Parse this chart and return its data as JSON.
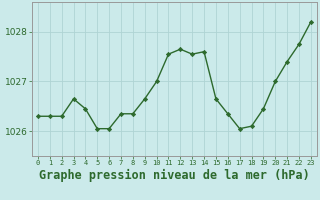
{
  "x": [
    0,
    1,
    2,
    3,
    4,
    5,
    6,
    7,
    8,
    9,
    10,
    11,
    12,
    13,
    14,
    15,
    16,
    17,
    18,
    19,
    20,
    21,
    22,
    23
  ],
  "y": [
    1026.3,
    1026.3,
    1026.3,
    1026.65,
    1026.45,
    1026.05,
    1026.05,
    1026.35,
    1026.35,
    1026.65,
    1027.0,
    1027.55,
    1027.65,
    1027.55,
    1027.6,
    1026.65,
    1026.35,
    1026.05,
    1026.1,
    1026.45,
    1027.0,
    1027.4,
    1027.75,
    1028.2
  ],
  "line_color": "#2d6a2d",
  "marker_color": "#2d6a2d",
  "bg_color": "#cbeaea",
  "grid_color": "#afd4d4",
  "axis_label_color": "#2d6a2d",
  "title": "Graphe pression niveau de la mer (hPa)",
  "title_fontsize": 8.5,
  "ylabel_ticks": [
    1026,
    1027,
    1028
  ],
  "ylim": [
    1025.5,
    1028.6
  ],
  "xlim": [
    -0.5,
    23.5
  ],
  "xtick_labels": [
    "0",
    "1",
    "2",
    "3",
    "4",
    "5",
    "6",
    "7",
    "8",
    "9",
    "10",
    "11",
    "12",
    "13",
    "14",
    "15",
    "16",
    "17",
    "18",
    "19",
    "20",
    "21",
    "22",
    "23"
  ]
}
